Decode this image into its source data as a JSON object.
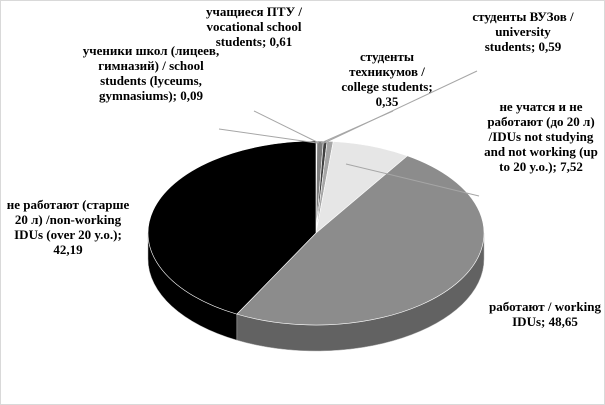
{
  "chart_data": {
    "type": "pie",
    "categories": [
      "ученики школ (лицеев, гимназий) / school students (lyceums, gymnasiums);",
      "учащиеся ПТУ / vocational school students;",
      "студенты техникумов / college students;",
      "студенты ВУЗов / university students;",
      "не учатся и не работают (до 20 л) /IDUs not studying and not working (up to 20 y.o.);",
      "работают / working IDUs;",
      "не работают (старше 20 л) /non-working IDUs (over 20 y.o.);"
    ],
    "values": [
      0.09,
      0.61,
      0.35,
      0.59,
      7.52,
      48.65,
      42.19
    ],
    "value_labels": [
      "0,09",
      "0,61",
      "0,35",
      "0,59",
      "7,52",
      "48,65",
      "42,19"
    ],
    "colors": [
      "#bfbfbf",
      "#7f7f7f",
      "#404040",
      "#a6a6a6",
      "#e6e6e6",
      "#8c8c8c",
      "#000000"
    ]
  }
}
